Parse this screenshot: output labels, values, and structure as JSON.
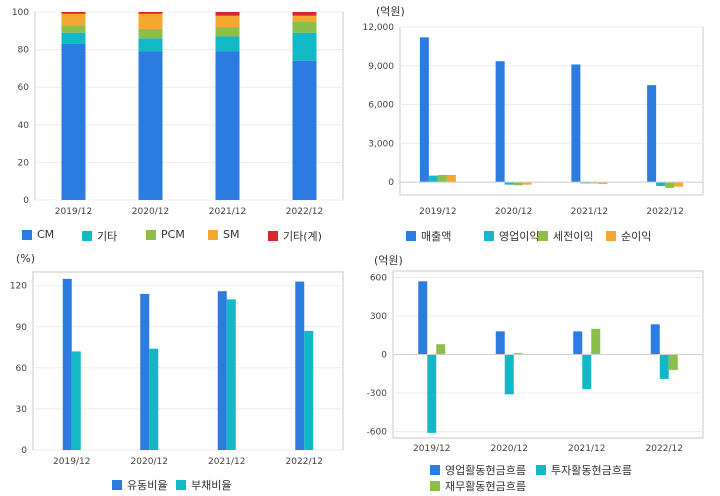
{
  "chart_data": [
    {
      "type": "bar",
      "stacked": true,
      "categories": [
        "2019/12",
        "2020/12",
        "2021/12",
        "2022/12"
      ],
      "ylim": [
        0,
        100
      ],
      "yticks": [
        "0",
        "20",
        "40",
        "60",
        "80",
        "100"
      ],
      "series": [
        {
          "name": "CM",
          "color": "#2c7be0",
          "values": [
            83,
            79,
            79,
            74
          ]
        },
        {
          "name": "기타",
          "color": "#12b8c6",
          "values": [
            6,
            7,
            8,
            15
          ]
        },
        {
          "name": "PCM",
          "color": "#8bbf4a",
          "values": [
            4,
            5,
            5,
            6
          ]
        },
        {
          "name": "SM",
          "color": "#f4a830",
          "values": [
            6,
            8,
            6,
            3
          ]
        },
        {
          "name": "기타(계)",
          "color": "#d9262c",
          "values": [
            1,
            1,
            2,
            2
          ]
        }
      ]
    },
    {
      "type": "bar",
      "unit": "(억원)",
      "categories": [
        "2019/12",
        "2020/12",
        "2021/12",
        "2022/12"
      ],
      "ylim": [
        -1000,
        12000
      ],
      "ytick_values": [
        0,
        3000,
        6000,
        9000,
        12000
      ],
      "yticks": [
        "0",
        "3,000",
        "6,000",
        "9,000",
        "12,000"
      ],
      "series": [
        {
          "name": "매출액",
          "color": "#2c7be0",
          "values": [
            11200,
            9350,
            9100,
            7500
          ]
        },
        {
          "name": "영업이익",
          "color": "#12b8c6",
          "values": [
            500,
            -200,
            -100,
            -300
          ]
        },
        {
          "name": "세전이익",
          "color": "#8bbf4a",
          "values": [
            550,
            -250,
            -100,
            -450
          ]
        },
        {
          "name": "순이익",
          "color": "#f4a830",
          "values": [
            550,
            -200,
            -150,
            -350
          ]
        }
      ]
    },
    {
      "type": "bar",
      "unit": "(%)",
      "categories": [
        "2019/12",
        "2020/12",
        "2021/12",
        "2022/12"
      ],
      "ylim": [
        0,
        130
      ],
      "ytick_values": [
        0,
        30,
        60,
        90,
        120
      ],
      "yticks": [
        "0",
        "30",
        "60",
        "90",
        "120"
      ],
      "series": [
        {
          "name": "유동비율",
          "color": "#2c7be0",
          "values": [
            125,
            114,
            116,
            123
          ]
        },
        {
          "name": "부채비율",
          "color": "#12b8c6",
          "values": [
            72,
            74,
            110,
            87
          ]
        }
      ]
    },
    {
      "type": "bar",
      "unit": "(억원)",
      "categories": [
        "2019/12",
        "2020/12",
        "2021/12",
        "2022/12"
      ],
      "ylim": [
        -650,
        650
      ],
      "ytick_values": [
        -600,
        -300,
        0,
        300,
        600
      ],
      "yticks": [
        "-600",
        "-300",
        "0",
        "300",
        "600"
      ],
      "series": [
        {
          "name": "영업활동현금흐름",
          "color": "#2c7be0",
          "values": [
            570,
            180,
            180,
            235
          ]
        },
        {
          "name": "투자활동현금흐름",
          "color": "#12b8c6",
          "values": [
            -610,
            -310,
            -270,
            -190
          ]
        },
        {
          "name": "재무활동현금흐름",
          "color": "#8bbf4a",
          "values": [
            80,
            10,
            200,
            -120
          ]
        }
      ]
    }
  ]
}
